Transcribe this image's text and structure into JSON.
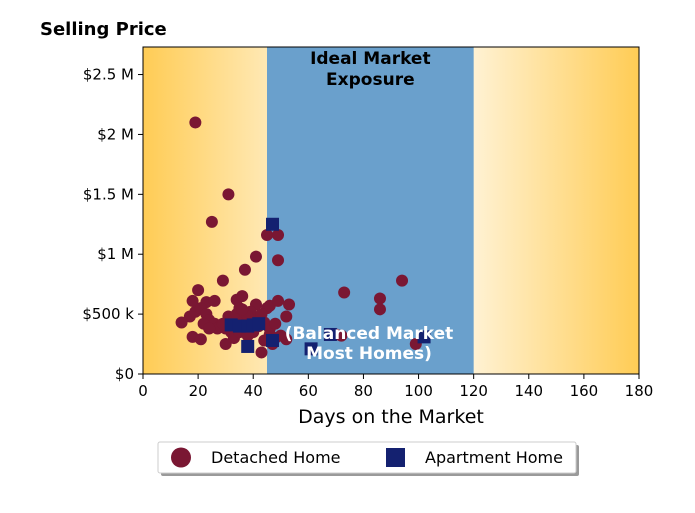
{
  "chart_data": {
    "type": "scatter",
    "ylabel": "Selling Price",
    "xlabel": "Days on the Market",
    "xlim": [
      0,
      180
    ],
    "ylim": [
      0,
      2730000
    ],
    "x_ticks": [
      0,
      20,
      40,
      60,
      80,
      100,
      120,
      140,
      160,
      180
    ],
    "x_tick_labels": [
      "0",
      "20",
      "40",
      "60",
      "80",
      "100",
      "120",
      "140",
      "160",
      "180"
    ],
    "y_ticks": [
      0,
      500000,
      1000000,
      1500000,
      2000000,
      2500000
    ],
    "y_tick_labels": [
      "$0",
      "$500 k",
      "$1 M",
      "$1.5 M",
      "$2 M",
      "$2.5 M"
    ],
    "region": {
      "x_start": 45,
      "x_end": 120,
      "color": "#6aa0cc"
    },
    "annotations": {
      "top": [
        "Ideal Market",
        "Exposure"
      ],
      "bottom": [
        "(Balanced Market",
        "Most Homes)"
      ]
    },
    "background_gradient": {
      "edge_color": "#ffcc55",
      "center_color": "#ffffff"
    },
    "legend": {
      "placement": "bottom-center"
    },
    "series": [
      {
        "name": "Detached Home",
        "marker": "circle",
        "color": "#7a1733",
        "points": [
          [
            19,
            2100000
          ],
          [
            31,
            1500000
          ],
          [
            25,
            1270000
          ],
          [
            45,
            1160000
          ],
          [
            49,
            1160000
          ],
          [
            41,
            980000
          ],
          [
            49,
            950000
          ],
          [
            37,
            870000
          ],
          [
            29,
            780000
          ],
          [
            94,
            780000
          ],
          [
            20,
            700000
          ],
          [
            73,
            680000
          ],
          [
            86,
            630000
          ],
          [
            18,
            610000
          ],
          [
            23,
            600000
          ],
          [
            26,
            610000
          ],
          [
            34,
            620000
          ],
          [
            36,
            650000
          ],
          [
            41,
            580000
          ],
          [
            45,
            550000
          ],
          [
            46,
            570000
          ],
          [
            49,
            610000
          ],
          [
            53,
            580000
          ],
          [
            86,
            540000
          ],
          [
            17,
            480000
          ],
          [
            19,
            520000
          ],
          [
            21,
            550000
          ],
          [
            23,
            500000
          ],
          [
            24,
            450000
          ],
          [
            26,
            420000
          ],
          [
            28,
            400000
          ],
          [
            30,
            380000
          ],
          [
            31,
            480000
          ],
          [
            32,
            350000
          ],
          [
            33,
            450000
          ],
          [
            34,
            500000
          ],
          [
            35,
            550000
          ],
          [
            36,
            420000
          ],
          [
            37,
            470000
          ],
          [
            38,
            380000
          ],
          [
            39,
            520000
          ],
          [
            40,
            350000
          ],
          [
            41,
            450000
          ],
          [
            42,
            400000
          ],
          [
            43,
            500000
          ],
          [
            44,
            430000
          ],
          [
            46,
            380000
          ],
          [
            48,
            420000
          ],
          [
            52,
            480000
          ],
          [
            14,
            430000
          ],
          [
            22,
            420000
          ],
          [
            27,
            380000
          ],
          [
            29,
            420000
          ],
          [
            33,
            300000
          ],
          [
            35,
            350000
          ],
          [
            18,
            310000
          ],
          [
            21,
            290000
          ],
          [
            30,
            250000
          ],
          [
            38,
            320000
          ],
          [
            44,
            280000
          ],
          [
            46,
            330000
          ],
          [
            48,
            300000
          ],
          [
            52,
            290000
          ],
          [
            43,
            180000
          ],
          [
            47,
            250000
          ],
          [
            50,
            320000
          ],
          [
            70,
            330000
          ],
          [
            72,
            320000
          ],
          [
            99,
            250000
          ],
          [
            38,
            480000
          ],
          [
            36,
            540000
          ],
          [
            24,
            380000
          ]
        ]
      },
      {
        "name": "Apartment Home",
        "marker": "square",
        "color": "#142170",
        "points": [
          [
            47,
            1250000
          ],
          [
            32,
            410000
          ],
          [
            35,
            400000
          ],
          [
            38,
            400000
          ],
          [
            40,
            410000
          ],
          [
            42,
            420000
          ],
          [
            38,
            230000
          ],
          [
            47,
            280000
          ],
          [
            61,
            210000
          ],
          [
            68,
            330000
          ],
          [
            102,
            310000
          ]
        ]
      }
    ]
  }
}
